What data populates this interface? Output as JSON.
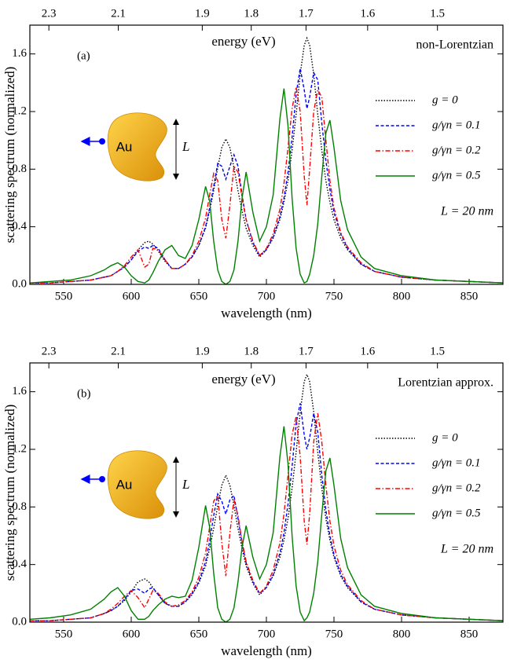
{
  "chart_data": [
    {
      "type": "line",
      "panel_label": "(a)",
      "note": "non-Lorentzian",
      "x2_label": "energy (eV)",
      "length_label": "L = 20 nm",
      "inset_material": "Au",
      "inset_length": "L",
      "xlabel": "wavelength (nm)",
      "ylabel": "scattering spectrum (normalized)",
      "xlim": [
        525,
        875
      ],
      "xticks": [
        550,
        600,
        650,
        700,
        750,
        800,
        850
      ],
      "x2ticks": [
        2.3,
        2.1,
        1.9,
        1.8,
        1.7,
        1.6,
        1.5
      ],
      "ylim": [
        0,
        1.8
      ],
      "yticks": [
        {
          "value": 0,
          "label": "0.0"
        },
        0.4,
        0.8,
        1.2,
        1.6
      ],
      "x": [
        525,
        540,
        555,
        570,
        580,
        585,
        590,
        595,
        600,
        605,
        610,
        613,
        616,
        620,
        625,
        630,
        635,
        640,
        645,
        650,
        655,
        658,
        661,
        664,
        667,
        670,
        673,
        676,
        679,
        682,
        685,
        690,
        695,
        700,
        705,
        710,
        713,
        716,
        719,
        722,
        725,
        728,
        730,
        732,
        735,
        738,
        741,
        744,
        747,
        750,
        755,
        760,
        770,
        780,
        800,
        825,
        850,
        875
      ],
      "series": [
        {
          "name": "g = 0",
          "color": "#000000",
          "line_style": "dotted",
          "values": [
            0.01,
            0.01,
            0.02,
            0.03,
            0.05,
            0.06,
            0.09,
            0.12,
            0.17,
            0.24,
            0.29,
            0.3,
            0.28,
            0.23,
            0.16,
            0.11,
            0.11,
            0.14,
            0.19,
            0.27,
            0.39,
            0.51,
            0.65,
            0.81,
            0.95,
            1.01,
            0.95,
            0.81,
            0.65,
            0.51,
            0.39,
            0.27,
            0.19,
            0.24,
            0.32,
            0.45,
            0.57,
            0.72,
            0.93,
            1.18,
            1.46,
            1.66,
            1.71,
            1.66,
            1.46,
            1.18,
            0.93,
            0.72,
            0.57,
            0.45,
            0.32,
            0.24,
            0.14,
            0.09,
            0.05,
            0.03,
            0.02,
            0.01
          ]
        },
        {
          "name": "g/γn = 0.1",
          "color": "#0000ff",
          "line_style": "dashed",
          "values": [
            0.01,
            0.01,
            0.02,
            0.03,
            0.05,
            0.06,
            0.09,
            0.12,
            0.17,
            0.23,
            0.26,
            0.25,
            0.27,
            0.25,
            0.17,
            0.11,
            0.11,
            0.14,
            0.19,
            0.27,
            0.4,
            0.53,
            0.68,
            0.84,
            0.82,
            0.73,
            0.82,
            0.9,
            0.82,
            0.62,
            0.45,
            0.29,
            0.2,
            0.24,
            0.33,
            0.47,
            0.6,
            0.78,
            1.02,
            1.32,
            1.5,
            1.35,
            1.22,
            1.3,
            1.47,
            1.42,
            1.12,
            0.86,
            0.66,
            0.5,
            0.35,
            0.25,
            0.14,
            0.09,
            0.05,
            0.03,
            0.02,
            0.01
          ]
        },
        {
          "name": "g/γn = 0.2",
          "color": "#ff0000",
          "line_style": "dashdot",
          "values": [
            0.01,
            0.01,
            0.02,
            0.03,
            0.05,
            0.06,
            0.09,
            0.13,
            0.19,
            0.24,
            0.12,
            0.14,
            0.25,
            0.24,
            0.17,
            0.11,
            0.11,
            0.14,
            0.2,
            0.3,
            0.46,
            0.62,
            0.77,
            0.72,
            0.45,
            0.32,
            0.55,
            0.82,
            0.78,
            0.6,
            0.45,
            0.3,
            0.2,
            0.25,
            0.35,
            0.52,
            0.7,
            0.95,
            1.22,
            1.37,
            1.2,
            0.75,
            0.55,
            0.8,
            1.2,
            1.35,
            1.3,
            1.0,
            0.72,
            0.53,
            0.36,
            0.26,
            0.15,
            0.09,
            0.05,
            0.03,
            0.02,
            0.01
          ]
        },
        {
          "name": "g/γn = 0.5",
          "color": "#008000",
          "line_style": "solid",
          "values": [
            0.01,
            0.02,
            0.03,
            0.06,
            0.1,
            0.13,
            0.15,
            0.12,
            0.06,
            0.02,
            0.01,
            0.03,
            0.08,
            0.16,
            0.24,
            0.27,
            0.2,
            0.18,
            0.27,
            0.45,
            0.68,
            0.58,
            0.3,
            0.1,
            0.02,
            0,
            0.02,
            0.1,
            0.3,
            0.6,
            0.78,
            0.5,
            0.3,
            0.4,
            0.62,
            1.15,
            1.36,
            1.1,
            0.6,
            0.25,
            0.07,
            0.01,
            0.02,
            0.07,
            0.2,
            0.42,
            0.75,
            1.05,
            1.14,
            0.95,
            0.58,
            0.38,
            0.19,
            0.11,
            0.06,
            0.03,
            0.02,
            0.01
          ]
        }
      ]
    },
    {
      "type": "line",
      "panel_label": "(b)",
      "note": "Lorentzian approx.",
      "x2_label": "energy (eV)",
      "length_label": "L = 20 nm",
      "inset_material": "Au",
      "inset_length": "L",
      "xlabel": "wavelength (nm)",
      "ylabel": "scattering spectrum (normalized)",
      "xlim": [
        525,
        875
      ],
      "xticks": [
        550,
        600,
        650,
        700,
        750,
        800,
        850
      ],
      "x2ticks": [
        2.3,
        2.1,
        1.9,
        1.8,
        1.7,
        1.6,
        1.5
      ],
      "ylim": [
        0,
        1.8
      ],
      "yticks": [
        {
          "value": 0,
          "label": "0.0"
        },
        0.4,
        0.8,
        1.2,
        1.6
      ],
      "x": [
        525,
        540,
        555,
        570,
        580,
        585,
        590,
        595,
        600,
        605,
        610,
        613,
        616,
        620,
        625,
        630,
        635,
        640,
        645,
        650,
        655,
        658,
        661,
        664,
        667,
        670,
        673,
        676,
        679,
        682,
        685,
        690,
        695,
        700,
        705,
        710,
        713,
        716,
        719,
        722,
        725,
        728,
        730,
        732,
        735,
        738,
        741,
        744,
        747,
        750,
        755,
        760,
        770,
        780,
        800,
        825,
        850,
        875
      ],
      "series": [
        {
          "name": "g = 0",
          "color": "#000000",
          "line_style": "dotted",
          "values": [
            0.01,
            0.01,
            0.02,
            0.03,
            0.06,
            0.08,
            0.11,
            0.15,
            0.21,
            0.28,
            0.3,
            0.28,
            0.24,
            0.19,
            0.13,
            0.11,
            0.11,
            0.14,
            0.19,
            0.27,
            0.39,
            0.51,
            0.65,
            0.81,
            0.95,
            1.02,
            0.95,
            0.81,
            0.65,
            0.51,
            0.39,
            0.27,
            0.19,
            0.24,
            0.32,
            0.45,
            0.57,
            0.72,
            0.93,
            1.18,
            1.46,
            1.67,
            1.72,
            1.67,
            1.46,
            1.18,
            0.93,
            0.72,
            0.57,
            0.45,
            0.32,
            0.24,
            0.14,
            0.09,
            0.05,
            0.03,
            0.02,
            0.01
          ]
        },
        {
          "name": "g/γn = 0.1",
          "color": "#0000ff",
          "line_style": "dashed",
          "values": [
            0.01,
            0.01,
            0.02,
            0.03,
            0.06,
            0.08,
            0.11,
            0.16,
            0.22,
            0.23,
            0.2,
            0.23,
            0.24,
            0.19,
            0.13,
            0.11,
            0.11,
            0.14,
            0.2,
            0.28,
            0.42,
            0.56,
            0.74,
            0.89,
            0.84,
            0.75,
            0.85,
            0.88,
            0.72,
            0.55,
            0.41,
            0.28,
            0.2,
            0.24,
            0.33,
            0.48,
            0.62,
            0.82,
            1.08,
            1.38,
            1.52,
            1.3,
            1.2,
            1.28,
            1.45,
            1.32,
            1.02,
            0.78,
            0.6,
            0.47,
            0.33,
            0.25,
            0.14,
            0.09,
            0.05,
            0.03,
            0.02,
            0.01
          ]
        },
        {
          "name": "g/γn = 0.2",
          "color": "#ff0000",
          "line_style": "dashdot",
          "values": [
            0.01,
            0.01,
            0.02,
            0.03,
            0.06,
            0.09,
            0.13,
            0.18,
            0.22,
            0.17,
            0.1,
            0.16,
            0.22,
            0.2,
            0.14,
            0.11,
            0.12,
            0.15,
            0.21,
            0.31,
            0.48,
            0.66,
            0.84,
            0.88,
            0.55,
            0.32,
            0.62,
            0.85,
            0.74,
            0.56,
            0.42,
            0.29,
            0.2,
            0.25,
            0.36,
            0.55,
            0.75,
            1.02,
            1.3,
            1.43,
            1.15,
            0.7,
            0.54,
            0.75,
            1.25,
            1.45,
            1.25,
            0.95,
            0.7,
            0.53,
            0.36,
            0.26,
            0.15,
            0.09,
            0.05,
            0.03,
            0.02,
            0.01
          ]
        },
        {
          "name": "g/γn = 0.5",
          "color": "#008000",
          "line_style": "solid",
          "values": [
            0.02,
            0.03,
            0.05,
            0.09,
            0.16,
            0.21,
            0.24,
            0.18,
            0.08,
            0.02,
            0.02,
            0.04,
            0.08,
            0.12,
            0.16,
            0.18,
            0.17,
            0.18,
            0.29,
            0.52,
            0.81,
            0.66,
            0.34,
            0.1,
            0.02,
            0,
            0.02,
            0.1,
            0.28,
            0.52,
            0.67,
            0.45,
            0.3,
            0.4,
            0.62,
            1.15,
            1.36,
            1.1,
            0.6,
            0.25,
            0.07,
            0.01,
            0.03,
            0.07,
            0.2,
            0.42,
            0.75,
            1.05,
            1.14,
            0.95,
            0.58,
            0.38,
            0.19,
            0.11,
            0.06,
            0.03,
            0.02,
            0.01
          ]
        }
      ]
    }
  ]
}
